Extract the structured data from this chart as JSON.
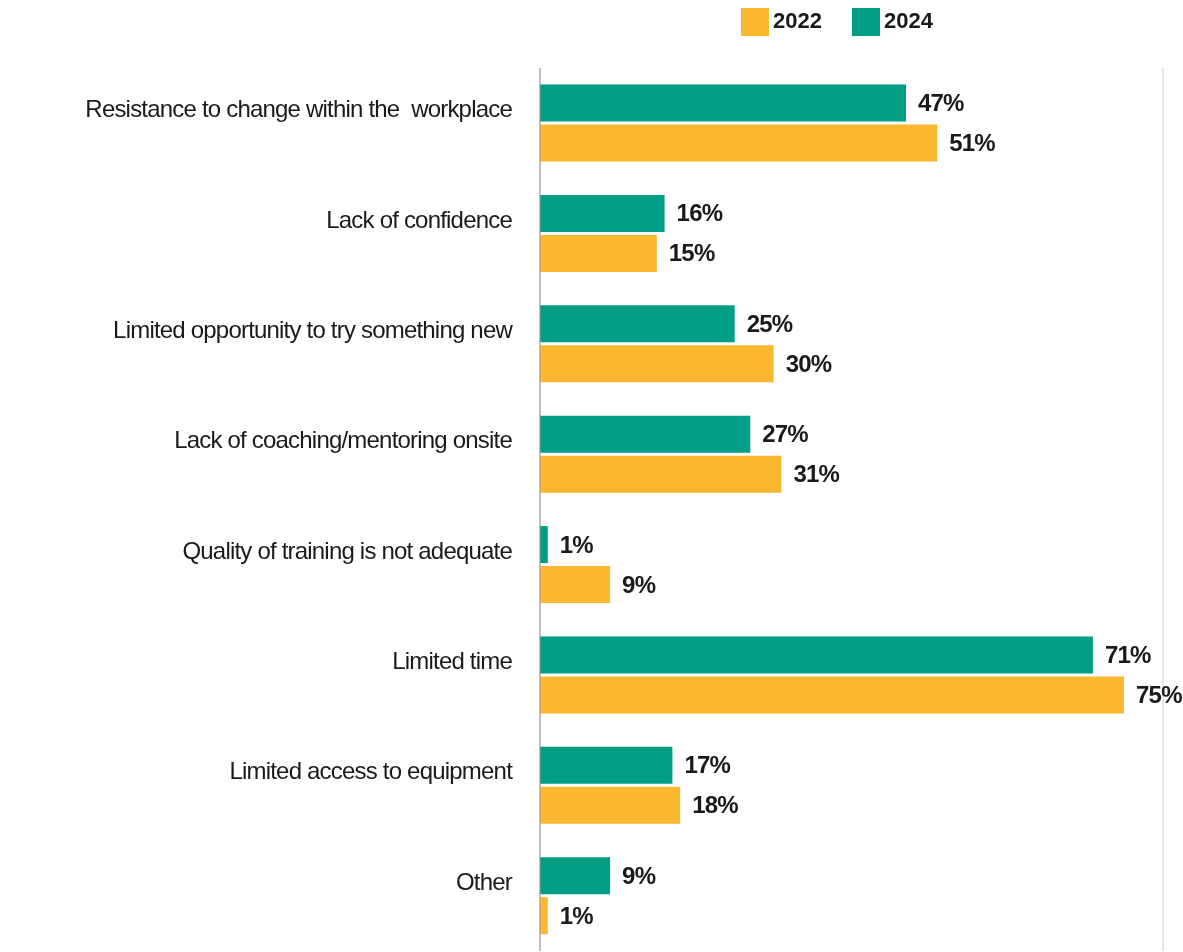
{
  "chart_data": {
    "type": "bar",
    "orientation": "horizontal",
    "categories": [
      "Resistance to change within the  workplace",
      "Lack of confidence",
      "Limited opportunity to try something new",
      "Lack of coaching/mentoring onsite",
      "Quality of training is not adequate",
      "Limited time",
      "Limited access to equipment",
      "Other"
    ],
    "series": [
      {
        "name": "2024",
        "color": "#009e85",
        "values": [
          47,
          16,
          25,
          27,
          1,
          71,
          17,
          9
        ],
        "value_labels": [
          "47%",
          "16%",
          "25%",
          "27%",
          "1%",
          "71%",
          "17%",
          "9%"
        ]
      },
      {
        "name": "2022",
        "color": "#f9b82f",
        "values": [
          51,
          15,
          30,
          31,
          9,
          75,
          18,
          1
        ],
        "value_labels": [
          "51%",
          "15%",
          "30%",
          "31%",
          "9%",
          "75%",
          "18%",
          "1%"
        ]
      }
    ],
    "xlim": [
      0,
      80
    ],
    "tick_labels": "y",
    "grid": "x",
    "legend": "top right"
  }
}
